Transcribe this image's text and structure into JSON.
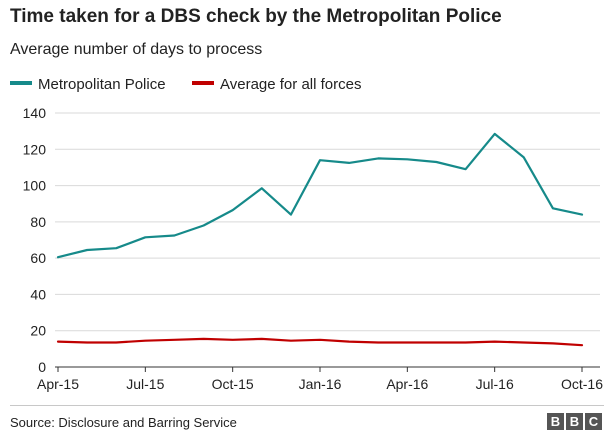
{
  "chart_data": {
    "type": "line",
    "title": "Time taken for a DBS check by the Metropolitan Police",
    "subtitle": "Average number of days to process",
    "ylim": [
      0,
      140
    ],
    "yticks": [
      0,
      20,
      40,
      60,
      80,
      100,
      120,
      140
    ],
    "xtick_labels": [
      "Apr-15",
      "Jul-15",
      "Oct-15",
      "Jan-16",
      "Apr-16",
      "Jul-16",
      "Oct-16"
    ],
    "xtick_indices": [
      0,
      3,
      6,
      9,
      12,
      15,
      18
    ],
    "categories": [
      "Apr-15",
      "May-15",
      "Jun-15",
      "Jul-15",
      "Aug-15",
      "Sep-15",
      "Oct-15",
      "Nov-15",
      "Dec-15",
      "Jan-16",
      "Feb-16",
      "Mar-16",
      "Apr-16",
      "May-16",
      "Jun-16",
      "Jul-16",
      "Aug-16",
      "Sep-16",
      "Oct-16"
    ],
    "series": [
      {
        "name": "Metropolitan Police",
        "color": "#168a8a",
        "values": [
          60.5,
          64.5,
          65.5,
          71.5,
          72.5,
          78,
          86.5,
          98.5,
          84,
          114,
          112.5,
          115,
          114.5,
          113,
          109,
          128.5,
          115.5,
          87.5,
          84
        ]
      },
      {
        "name": "Average for all forces",
        "color": "#c00000",
        "values": [
          14,
          13.5,
          13.5,
          14.5,
          15,
          15.5,
          15,
          15.5,
          14.5,
          15,
          14,
          13.5,
          13.5,
          13.5,
          13.5,
          14,
          13.5,
          13,
          12
        ]
      }
    ]
  },
  "source": "Source: Disclosure and Barring Service",
  "logo": [
    "B",
    "B",
    "C"
  ]
}
